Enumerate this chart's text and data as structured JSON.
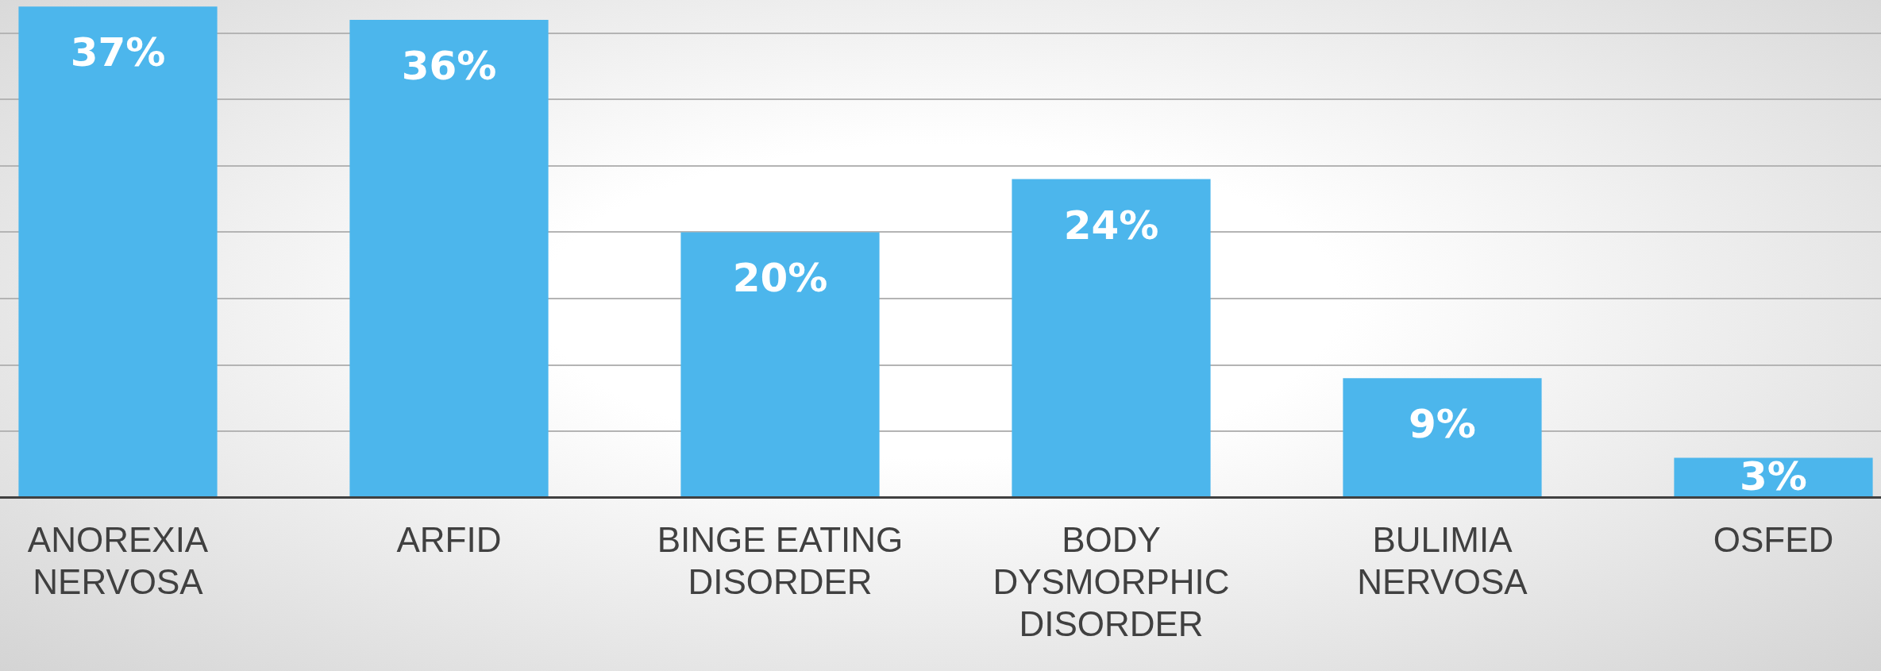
{
  "chart_data": {
    "type": "bar",
    "categories": [
      "ANOREXIA NERVOSA",
      "ARFID",
      "BINGE EATING DISORDER",
      "BODY DYSMORPHIC DISORDER",
      "BULIMIA NERVOSA",
      "OSFED"
    ],
    "values": [
      37,
      36,
      20,
      24,
      9,
      3
    ],
    "value_labels": [
      "37%",
      "36%",
      "20%",
      "24%",
      "9%",
      "3%"
    ],
    "color": "#4cb6ec",
    "ylim": [
      0,
      37.5
    ],
    "yticks": [
      {
        "value": 0,
        "label": null
      },
      {
        "value": 5,
        "label": null
      },
      {
        "value": 10,
        "label": null
      },
      {
        "value": 15,
        "label": null
      },
      {
        "value": 20,
        "label": null
      },
      {
        "value": 25,
        "label": null
      },
      {
        "value": 30,
        "label": null
      },
      {
        "value": 35,
        "label": null
      }
    ],
    "grid": "y",
    "tick_labels": "x"
  }
}
